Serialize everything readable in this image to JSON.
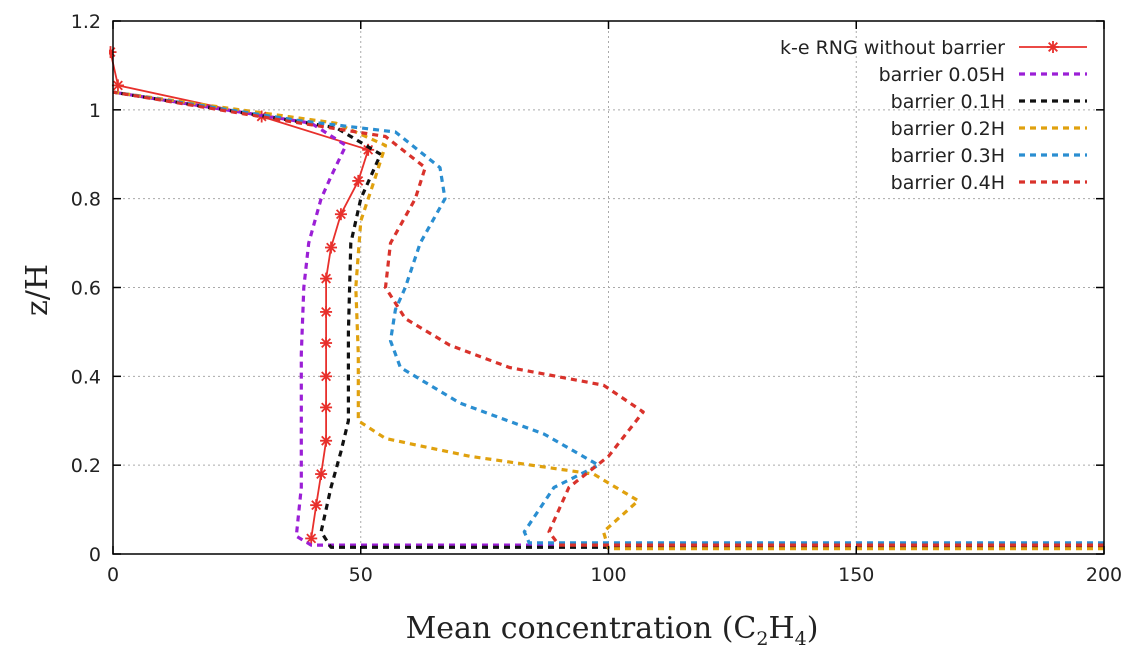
{
  "chart_data": {
    "type": "line",
    "title": "",
    "xlabel": "Mean concentration (C2H4)",
    "xlabel_parts": {
      "main": "Mean concentration (C",
      "sub1": "2",
      "mid": "H",
      "sub2": "4",
      "end": ")"
    },
    "ylabel": "z/H",
    "xlim": [
      0,
      200
    ],
    "ylim": [
      0,
      1.2
    ],
    "x_ticks": [
      0,
      50,
      100,
      150,
      200
    ],
    "y_ticks": [
      0,
      0.2,
      0.4,
      0.6,
      0.8,
      1,
      1.2
    ],
    "grid": true,
    "legend_position": "top-right",
    "series": [
      {
        "name": "k-e RNG without barrier",
        "color": "#e8302c",
        "style": "solid",
        "marker": "star",
        "points": [
          [
            40,
            0.035
          ],
          [
            41,
            0.11
          ],
          [
            42,
            0.18
          ],
          [
            43,
            0.255
          ],
          [
            43,
            0.33
          ],
          [
            43,
            0.4
          ],
          [
            43,
            0.475
          ],
          [
            43,
            0.545
          ],
          [
            43,
            0.62
          ],
          [
            44,
            0.69
          ],
          [
            46,
            0.765
          ],
          [
            49.5,
            0.84
          ],
          [
            51.5,
            0.91
          ],
          [
            30,
            0.985
          ],
          [
            1,
            1.055
          ],
          [
            -0.5,
            1.13
          ]
        ]
      },
      {
        "name": "barrier 0.05H",
        "color": "#9b1fd6",
        "style": "dashed",
        "points": [
          [
            200,
            0.02
          ],
          [
            40,
            0.02
          ],
          [
            37,
            0.04
          ],
          [
            38,
            0.15
          ],
          [
            38,
            0.3
          ],
          [
            38,
            0.45
          ],
          [
            38.5,
            0.6
          ],
          [
            39.5,
            0.7
          ],
          [
            42,
            0.8
          ],
          [
            44,
            0.85
          ],
          [
            47,
            0.92
          ],
          [
            40,
            0.97
          ],
          [
            0,
            1.04
          ]
        ]
      },
      {
        "name": "barrier 0.1H",
        "color": "#111111",
        "style": "dashed",
        "points": [
          [
            200,
            0.015
          ],
          [
            44,
            0.015
          ],
          [
            42,
            0.05
          ],
          [
            44,
            0.15
          ],
          [
            46,
            0.23
          ],
          [
            47.5,
            0.3
          ],
          [
            47.5,
            0.5
          ],
          [
            48,
            0.7
          ],
          [
            50,
            0.8
          ],
          [
            54,
            0.9
          ],
          [
            45,
            0.96
          ],
          [
            0,
            1.04
          ]
        ]
      },
      {
        "name": "barrier 0.2H",
        "color": "#e0a10e",
        "style": "dashed",
        "points": [
          [
            200,
            0.012
          ],
          [
            100,
            0.012
          ],
          [
            99,
            0.05
          ],
          [
            106,
            0.12
          ],
          [
            97,
            0.18
          ],
          [
            72,
            0.22
          ],
          [
            55,
            0.26
          ],
          [
            49.5,
            0.3
          ],
          [
            49.5,
            0.45
          ],
          [
            49,
            0.6
          ],
          [
            50,
            0.75
          ],
          [
            53,
            0.85
          ],
          [
            55,
            0.92
          ],
          [
            45,
            0.97
          ],
          [
            0,
            1.04
          ]
        ]
      },
      {
        "name": "barrier 0.3H",
        "color": "#2a8ed1",
        "style": "dashed",
        "points": [
          [
            200,
            0.025
          ],
          [
            84,
            0.025
          ],
          [
            83,
            0.05
          ],
          [
            89,
            0.15
          ],
          [
            98,
            0.2
          ],
          [
            87,
            0.27
          ],
          [
            70,
            0.34
          ],
          [
            58,
            0.42
          ],
          [
            56,
            0.48
          ],
          [
            57,
            0.55
          ],
          [
            59,
            0.6
          ],
          [
            62,
            0.7
          ],
          [
            67,
            0.8
          ],
          [
            66,
            0.87
          ],
          [
            57,
            0.95
          ],
          [
            38,
            0.975
          ],
          [
            0,
            1.04
          ]
        ]
      },
      {
        "name": "barrier 0.4H",
        "color": "#d9322b",
        "style": "dashed",
        "points": [
          [
            200,
            0.02
          ],
          [
            90,
            0.02
          ],
          [
            88,
            0.05
          ],
          [
            92,
            0.15
          ],
          [
            100,
            0.22
          ],
          [
            107,
            0.32
          ],
          [
            99,
            0.38
          ],
          [
            80,
            0.42
          ],
          [
            68,
            0.47
          ],
          [
            59,
            0.53
          ],
          [
            55,
            0.6
          ],
          [
            56,
            0.7
          ],
          [
            61,
            0.8
          ],
          [
            63,
            0.87
          ],
          [
            55,
            0.94
          ],
          [
            35,
            0.975
          ],
          [
            0,
            1.04
          ]
        ]
      }
    ]
  }
}
